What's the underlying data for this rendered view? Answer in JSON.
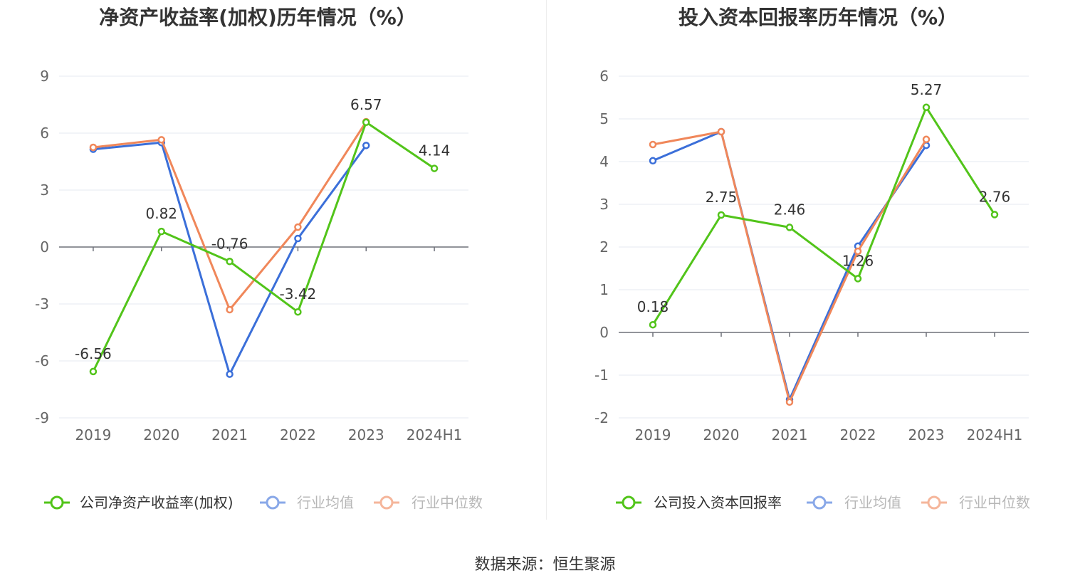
{
  "source": {
    "label": "数据来源：",
    "name": "恒生聚源"
  },
  "chart_data": [
    {
      "type": "line",
      "title": "净资产收益率(加权)历年情况（%）",
      "categories": [
        "2019",
        "2020",
        "2021",
        "2022",
        "2023",
        "2024H1"
      ],
      "ylim": [
        -9,
        9
      ],
      "yticks": [
        -9,
        -6,
        -3,
        0,
        3,
        6,
        9
      ],
      "grid": true,
      "legend_position": "bottom",
      "series": [
        {
          "name": "公司净资产收益率(加权)",
          "color": "#52c41a",
          "values": [
            -6.56,
            0.82,
            -0.76,
            -3.42,
            6.57,
            4.14
          ],
          "labels": [
            "-6.56",
            "0.82",
            "-0.76",
            "-3.42",
            "6.57",
            "4.14"
          ]
        },
        {
          "name": "行业均值",
          "color": "#3b6fd9",
          "values": [
            5.15,
            5.5,
            -6.7,
            0.45,
            5.35,
            null
          ]
        },
        {
          "name": "行业中位数",
          "color": "#f0875a",
          "values": [
            5.25,
            5.65,
            -3.3,
            1.05,
            6.6,
            null
          ]
        }
      ]
    },
    {
      "type": "line",
      "title": "投入资本回报率历年情况（%）",
      "categories": [
        "2019",
        "2020",
        "2021",
        "2022",
        "2023",
        "2024H1"
      ],
      "ylim": [
        -2,
        6
      ],
      "yticks": [
        -2,
        -1,
        0,
        1,
        2,
        3,
        4,
        5,
        6
      ],
      "grid": true,
      "legend_position": "bottom",
      "series": [
        {
          "name": "公司投入资本回报率",
          "color": "#52c41a",
          "values": [
            0.18,
            2.75,
            2.46,
            1.26,
            5.27,
            2.76
          ],
          "labels": [
            "0.18",
            "2.75",
            "2.46",
            "1.26",
            "5.27",
            "2.76"
          ]
        },
        {
          "name": "行业均值",
          "color": "#3b6fd9",
          "values": [
            4.02,
            4.7,
            -1.57,
            2.02,
            4.38,
            null
          ]
        },
        {
          "name": "行业中位数",
          "color": "#f0875a",
          "values": [
            4.4,
            4.7,
            -1.63,
            1.9,
            4.52,
            null
          ]
        }
      ]
    }
  ]
}
